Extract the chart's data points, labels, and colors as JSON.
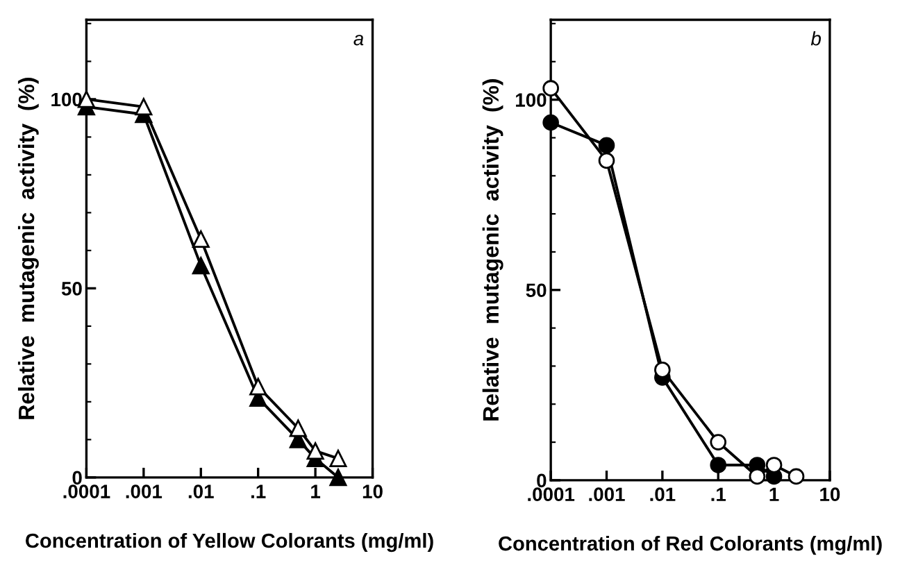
{
  "chart_data": [
    {
      "type": "line",
      "xlabel": "Concentration of Yellow Colorants (mg/ml)",
      "ylabel": "Relative  mutagenic  activity  (%)",
      "annotations": [
        "a"
      ],
      "log": "x",
      "xlim": [
        0.0001,
        10
      ],
      "ylim": [
        0,
        121
      ],
      "xticks": [
        {
          "value": 0.0001,
          "label": ".0001"
        },
        {
          "value": 0.001,
          "label": ".001"
        },
        {
          "value": 0.01,
          "label": ".01"
        },
        {
          "value": 0.1,
          "label": ".1"
        },
        1,
        10
      ],
      "yticks": [
        0,
        50,
        100
      ],
      "grid": false,
      "line_style": "solid",
      "series": [
        {
          "color": "#ffffff",
          "marker": "triangle",
          "x": [
            0.0001,
            0.001,
            0.01,
            0.1,
            0.5,
            1,
            2.5
          ],
          "values": [
            100,
            98,
            63,
            24,
            13,
            7,
            5
          ]
        },
        {
          "color": "#000000",
          "marker": "triangle",
          "x": [
            0.0001,
            0.001,
            0.01,
            0.1,
            0.5,
            1,
            2.5
          ],
          "values": [
            98,
            96,
            56,
            21,
            10,
            5,
            0
          ]
        }
      ]
    },
    {
      "type": "line",
      "xlabel": "Concentration of Red Colorants (mg/ml)",
      "ylabel": "Relative  mutagenic  activity  (%)",
      "annotations": [
        "b"
      ],
      "log": "x",
      "xlim": [
        0.0001,
        10
      ],
      "ylim": [
        0,
        121
      ],
      "xticks": [
        {
          "value": 0.0001,
          "label": ".0001"
        },
        {
          "value": 0.001,
          "label": ".001"
        },
        {
          "value": 0.01,
          "label": ".01"
        },
        {
          "value": 0.1,
          "label": ".1"
        },
        1,
        10
      ],
      "yticks": [
        0,
        50,
        100
      ],
      "grid": false,
      "line_style": "solid",
      "series": [
        {
          "color": "#ffffff",
          "marker": "circle",
          "x": [
            0.0001,
            0.001,
            0.01,
            0.1,
            0.5,
            1,
            2.5
          ],
          "values": [
            103,
            84,
            29,
            10,
            1,
            4,
            1
          ]
        },
        {
          "color": "#000000",
          "marker": "circle",
          "x": [
            0.0001,
            0.001,
            0.01,
            0.1,
            0.5,
            1
          ],
          "values": [
            94,
            88,
            27,
            4,
            4,
            1
          ]
        }
      ]
    }
  ]
}
